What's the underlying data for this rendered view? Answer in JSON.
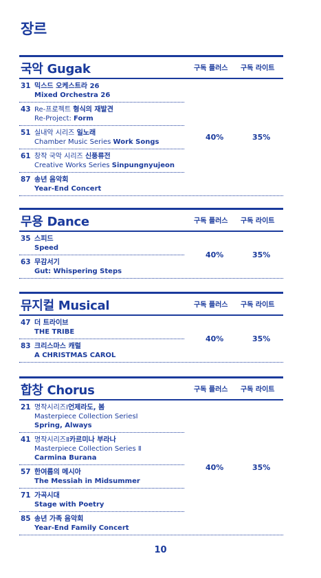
{
  "page_title": "장르",
  "page_number": "10",
  "columns": {
    "plus": "구독 플러스",
    "lite": "구독 라이트"
  },
  "sections": [
    {
      "title": "국악 Gugak",
      "plus": "40%",
      "lite": "35%",
      "items": [
        {
          "num": "31",
          "lines": [
            [
              {
                "t": "믹스드 오케스트라 26",
                "b": true
              }
            ],
            [
              {
                "t": "Mixed Orchestra 26",
                "b": true
              }
            ]
          ]
        },
        {
          "num": "43",
          "lines": [
            [
              {
                "t": "Re-프로젝트 ",
                "b": false
              },
              {
                "t": "형식의 재발견",
                "b": true
              }
            ],
            [
              {
                "t": "Re-Project: ",
                "b": false
              },
              {
                "t": "Form",
                "b": true
              }
            ]
          ]
        },
        {
          "num": "51",
          "lines": [
            [
              {
                "t": "실내악 시리즈 ",
                "b": false
              },
              {
                "t": "일노래",
                "b": true
              }
            ],
            [
              {
                "t": "Chamber Music Series ",
                "b": false
              },
              {
                "t": "Work Songs",
                "b": true
              }
            ]
          ]
        },
        {
          "num": "61",
          "lines": [
            [
              {
                "t": "창작 국악 시리즈 ",
                "b": false
              },
              {
                "t": "신풍류전",
                "b": true
              }
            ],
            [
              {
                "t": "Creative Works Series ",
                "b": false
              },
              {
                "t": "Sinpungnyujeon",
                "b": true
              }
            ]
          ]
        },
        {
          "num": "87",
          "lines": [
            [
              {
                "t": "송년 음악회",
                "b": true
              }
            ],
            [
              {
                "t": "Year-End Concert",
                "b": true
              }
            ]
          ]
        }
      ]
    },
    {
      "title": "무용 Dance",
      "plus": "40%",
      "lite": "35%",
      "items": [
        {
          "num": "35",
          "lines": [
            [
              {
                "t": "스피드",
                "b": true
              }
            ],
            [
              {
                "t": "Speed",
                "b": true
              }
            ]
          ]
        },
        {
          "num": "63",
          "lines": [
            [
              {
                "t": "무감서기",
                "b": true
              }
            ],
            [
              {
                "t": "Gut: Whispering Steps",
                "b": true
              }
            ]
          ]
        }
      ]
    },
    {
      "title": "뮤지컬 Musical",
      "plus": "40%",
      "lite": "35%",
      "items": [
        {
          "num": "47",
          "lines": [
            [
              {
                "t": "더 트라이브",
                "b": true
              }
            ],
            [
              {
                "t": "THE TRIBE",
                "b": true
              }
            ]
          ]
        },
        {
          "num": "83",
          "lines": [
            [
              {
                "t": "크리스마스 캐럴",
                "b": true
              }
            ],
            [
              {
                "t": "A CHRISTMAS CAROL",
                "b": true
              }
            ]
          ]
        }
      ]
    },
    {
      "title": "합창 Chorus",
      "plus": "40%",
      "lite": "35%",
      "items": [
        {
          "num": "21",
          "lines": [
            [
              {
                "t": "명작시리즈Ⅰ",
                "b": false
              },
              {
                "t": "언제라도, 봄",
                "b": true
              }
            ],
            [
              {
                "t": "Masterpiece Collection SeriesⅠ",
                "b": false
              }
            ],
            [
              {
                "t": "Spring, Always",
                "b": true
              }
            ]
          ]
        },
        {
          "num": "41",
          "lines": [
            [
              {
                "t": "명작시리즈Ⅱ",
                "b": false
              },
              {
                "t": "카르미나 부라나",
                "b": true
              }
            ],
            [
              {
                "t": "Masterpiece Collection Series Ⅱ",
                "b": false
              }
            ],
            [
              {
                "t": "Carmina Burana",
                "b": true
              }
            ]
          ]
        },
        {
          "num": "57",
          "lines": [
            [
              {
                "t": "한여름의 메시아",
                "b": true
              }
            ],
            [
              {
                "t": "The Messiah in Midsummer",
                "b": true
              }
            ]
          ]
        },
        {
          "num": "71",
          "lines": [
            [
              {
                "t": "가곡시대",
                "b": true
              }
            ],
            [
              {
                "t": "Stage with Poetry",
                "b": true
              }
            ]
          ]
        },
        {
          "num": "85",
          "lines": [
            [
              {
                "t": "송년 가족 음악회",
                "b": true
              }
            ],
            [
              {
                "t": "Year-End Family Concert",
                "b": true
              }
            ]
          ]
        }
      ]
    }
  ]
}
